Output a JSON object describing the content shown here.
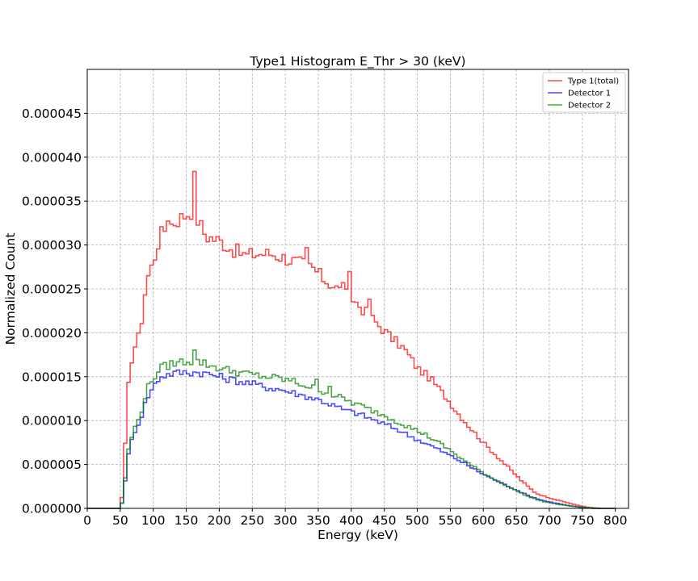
{
  "chart_data": {
    "type": "histogram-step",
    "title": "Type1 Histogram E_Thr > 30 (keV)",
    "xlabel": "Energy (keV)",
    "ylabel": "Normalized Count",
    "xlim": [
      0,
      820
    ],
    "ylim": [
      0,
      5e-05
    ],
    "xticks": [
      0,
      50,
      100,
      150,
      200,
      250,
      300,
      350,
      400,
      450,
      500,
      550,
      600,
      650,
      700,
      750,
      800
    ],
    "xtick_labels": [
      "0",
      "50",
      "100",
      "150",
      "200",
      "250",
      "300",
      "350",
      "400",
      "450",
      "500",
      "550",
      "600",
      "650",
      "700",
      "750",
      "800"
    ],
    "yticks": [
      0,
      5e-06,
      1e-05,
      1.5e-05,
      2e-05,
      2.5e-05,
      3e-05,
      3.5e-05,
      4e-05,
      4.5e-05
    ],
    "ytick_labels": [
      "0.000000",
      "0.000005",
      "0.000010",
      "0.000015",
      "0.000020",
      "0.000025",
      "0.000030",
      "0.000035",
      "0.000040",
      "0.000045"
    ],
    "grid": true,
    "legend_position": "top-right",
    "bin_width": 5,
    "series": [
      {
        "name": "Type 1(total)",
        "color": "#ff0000",
        "points": [
          [
            0,
            0
          ],
          [
            50,
            0
          ],
          [
            55,
            2.5e-06
          ],
          [
            60,
            1.2e-05
          ],
          [
            65,
            1.6e-05
          ],
          [
            70,
            1.8e-05
          ],
          [
            80,
            2e-05
          ],
          [
            90,
            2.6e-05
          ],
          [
            100,
            2.8e-05
          ],
          [
            110,
            3.1e-05
          ],
          [
            120,
            3.2e-05
          ],
          [
            130,
            3.25e-05
          ],
          [
            140,
            3.3e-05
          ],
          [
            150,
            3.35e-05
          ],
          [
            160,
            3.4e-05
          ],
          [
            170,
            3.25e-05
          ],
          [
            180,
            3.1e-05
          ],
          [
            200,
            3.05e-05
          ],
          [
            220,
            2.95e-05
          ],
          [
            240,
            2.88e-05
          ],
          [
            260,
            2.9e-05
          ],
          [
            280,
            2.9e-05
          ],
          [
            300,
            2.85e-05
          ],
          [
            320,
            2.8e-05
          ],
          [
            340,
            2.75e-05
          ],
          [
            360,
            2.6e-05
          ],
          [
            380,
            2.5e-05
          ],
          [
            400,
            2.4e-05
          ],
          [
            420,
            2.25e-05
          ],
          [
            440,
            2.1e-05
          ],
          [
            460,
            1.95e-05
          ],
          [
            480,
            1.82e-05
          ],
          [
            500,
            1.6e-05
          ],
          [
            520,
            1.48e-05
          ],
          [
            540,
            1.3e-05
          ],
          [
            560,
            1.1e-05
          ],
          [
            580,
            9.2e-06
          ],
          [
            600,
            7.5e-06
          ],
          [
            620,
            6e-06
          ],
          [
            640,
            4.5e-06
          ],
          [
            660,
            3e-06
          ],
          [
            680,
            1.7e-06
          ],
          [
            700,
            1.2e-06
          ],
          [
            720,
            8e-07
          ],
          [
            740,
            4e-07
          ],
          [
            760,
            1e-07
          ],
          [
            780,
            0
          ],
          [
            820,
            0
          ]
        ],
        "spikes": [
          [
            160,
            4e-06
          ],
          [
            120,
            1.2e-06
          ],
          [
            330,
            1.5e-06
          ],
          [
            385,
            1.5e-06
          ],
          [
            395,
            2.2e-06
          ],
          [
            425,
            2e-06
          ]
        ]
      },
      {
        "name": "Detector 1",
        "color": "#0000ff",
        "points": [
          [
            0,
            0
          ],
          [
            50,
            0
          ],
          [
            55,
            1.2e-06
          ],
          [
            60,
            5.2e-06
          ],
          [
            65,
            7e-06
          ],
          [
            70,
            8.5e-06
          ],
          [
            80,
            1e-05
          ],
          [
            90,
            1.25e-05
          ],
          [
            100,
            1.38e-05
          ],
          [
            110,
            1.5e-05
          ],
          [
            120,
            1.52e-05
          ],
          [
            130,
            1.54e-05
          ],
          [
            150,
            1.55e-05
          ],
          [
            170,
            1.55e-05
          ],
          [
            190,
            1.52e-05
          ],
          [
            210,
            1.48e-05
          ],
          [
            230,
            1.45e-05
          ],
          [
            250,
            1.42e-05
          ],
          [
            270,
            1.38e-05
          ],
          [
            290,
            1.36e-05
          ],
          [
            310,
            1.32e-05
          ],
          [
            330,
            1.28e-05
          ],
          [
            350,
            1.24e-05
          ],
          [
            370,
            1.18e-05
          ],
          [
            390,
            1.12e-05
          ],
          [
            410,
            1.08e-05
          ],
          [
            430,
            1.02e-05
          ],
          [
            450,
            9.6e-06
          ],
          [
            470,
            9e-06
          ],
          [
            490,
            8.2e-06
          ],
          [
            510,
            7.5e-06
          ],
          [
            530,
            6.8e-06
          ],
          [
            550,
            6e-06
          ],
          [
            570,
            5.2e-06
          ],
          [
            590,
            4.3e-06
          ],
          [
            610,
            3.5e-06
          ],
          [
            630,
            2.8e-06
          ],
          [
            650,
            2.1e-06
          ],
          [
            670,
            1.4e-06
          ],
          [
            690,
            9e-07
          ],
          [
            710,
            6e-07
          ],
          [
            730,
            3e-07
          ],
          [
            750,
            1e-07
          ],
          [
            770,
            0
          ],
          [
            820,
            0
          ]
        ],
        "spikes": []
      },
      {
        "name": "Detector 2",
        "color": "#008000",
        "points": [
          [
            0,
            0
          ],
          [
            50,
            0
          ],
          [
            55,
            1.2e-06
          ],
          [
            60,
            5.8e-06
          ],
          [
            65,
            7.5e-06
          ],
          [
            70,
            8.8e-06
          ],
          [
            80,
            1.05e-05
          ],
          [
            90,
            1.35e-05
          ],
          [
            100,
            1.48e-05
          ],
          [
            110,
            1.6e-05
          ],
          [
            120,
            1.62e-05
          ],
          [
            130,
            1.65e-05
          ],
          [
            150,
            1.68e-05
          ],
          [
            170,
            1.67e-05
          ],
          [
            190,
            1.62e-05
          ],
          [
            210,
            1.58e-05
          ],
          [
            230,
            1.55e-05
          ],
          [
            250,
            1.52e-05
          ],
          [
            270,
            1.5e-05
          ],
          [
            290,
            1.48e-05
          ],
          [
            310,
            1.45e-05
          ],
          [
            330,
            1.4e-05
          ],
          [
            350,
            1.36e-05
          ],
          [
            370,
            1.3e-05
          ],
          [
            390,
            1.24e-05
          ],
          [
            410,
            1.18e-05
          ],
          [
            430,
            1.12e-05
          ],
          [
            450,
            1.06e-05
          ],
          [
            470,
            9.9e-06
          ],
          [
            490,
            9.2e-06
          ],
          [
            510,
            8.5e-06
          ],
          [
            530,
            7.6e-06
          ],
          [
            550,
            6.6e-06
          ],
          [
            570,
            5.5e-06
          ],
          [
            590,
            4.5e-06
          ],
          [
            610,
            3.6e-06
          ],
          [
            630,
            2.8e-06
          ],
          [
            650,
            2e-06
          ],
          [
            670,
            1.3e-06
          ],
          [
            690,
            8e-07
          ],
          [
            710,
            5e-07
          ],
          [
            730,
            3e-07
          ],
          [
            750,
            1e-07
          ],
          [
            770,
            0
          ],
          [
            820,
            0
          ]
        ],
        "spikes": [
          [
            160,
            1.6e-06
          ],
          [
            345,
            8e-07
          ],
          [
            365,
            1e-06
          ]
        ]
      }
    ]
  }
}
